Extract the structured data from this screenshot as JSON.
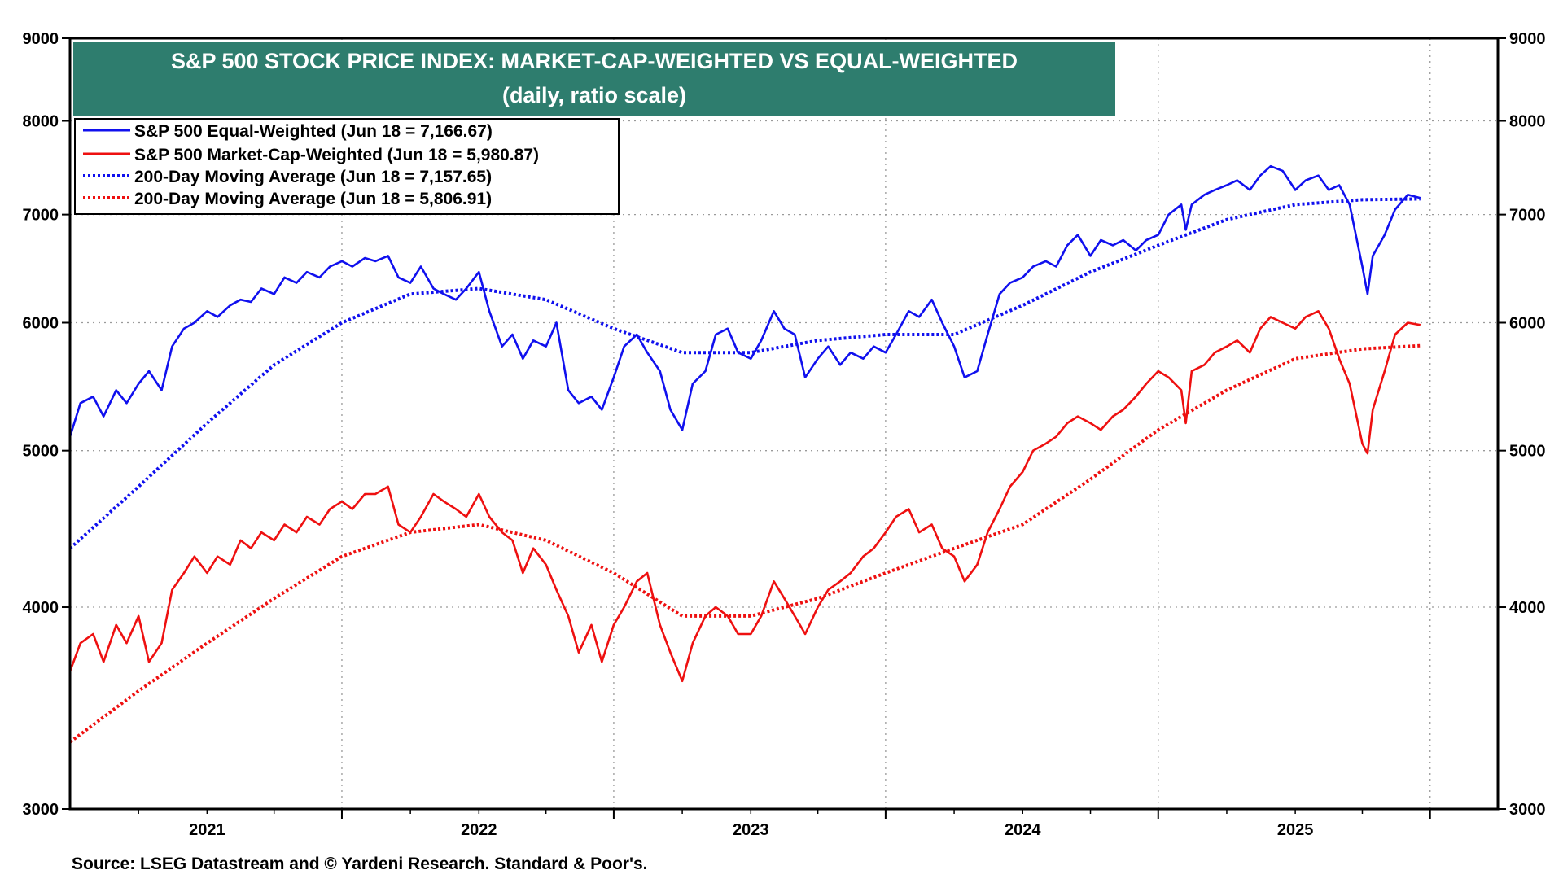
{
  "chart_data": {
    "type": "line",
    "title": "S&P 500 STOCK PRICE INDEX: MARKET-CAP-WEIGHTED VS EQUAL-WEIGHTED",
    "subtitle": "(daily, ratio scale)",
    "source": "Source: LSEG Datastream and © Yardeni Research. Standard & Poor's.",
    "y_scale": "log",
    "ylim": [
      3000,
      9000
    ],
    "y_ticks": [
      "3000",
      "4000",
      "5000",
      "6000",
      "7000",
      "8000",
      "9000"
    ],
    "x_range": [
      "2020-07-01",
      "2025-09-30"
    ],
    "x_ticks": [
      "2021",
      "2022",
      "2023",
      "2024",
      "2025"
    ],
    "grid": true,
    "legend_position": "top-left",
    "colors": {
      "equal": "#1010ee",
      "cap": "#ee1010",
      "title_bg": "#2e7d6e"
    },
    "series": [
      {
        "name": "S&P 500 Equal-Weighted (Jun 18 = 7,166.67)",
        "color": "#1010ee",
        "style": "solid",
        "x": [
          "2020-07-01",
          "2020-07-15",
          "2020-08-01",
          "2020-08-15",
          "2020-09-01",
          "2020-09-15",
          "2020-10-01",
          "2020-10-15",
          "2020-11-01",
          "2020-11-15",
          "2020-12-01",
          "2020-12-15",
          "2021-01-01",
          "2021-01-15",
          "2021-02-01",
          "2021-02-15",
          "2021-03-01",
          "2021-03-15",
          "2021-04-01",
          "2021-04-15",
          "2021-05-01",
          "2021-05-15",
          "2021-06-01",
          "2021-06-15",
          "2021-07-01",
          "2021-07-15",
          "2021-08-01",
          "2021-08-15",
          "2021-09-01",
          "2021-09-15",
          "2021-10-01",
          "2021-10-15",
          "2021-11-01",
          "2021-11-15",
          "2021-12-01",
          "2021-12-15",
          "2022-01-01",
          "2022-01-15",
          "2022-02-01",
          "2022-02-15",
          "2022-03-01",
          "2022-03-15",
          "2022-04-01",
          "2022-04-15",
          "2022-05-01",
          "2022-05-15",
          "2022-06-01",
          "2022-06-15",
          "2022-07-01",
          "2022-07-15",
          "2022-08-01",
          "2022-08-15",
          "2022-09-01",
          "2022-09-15",
          "2022-10-01",
          "2022-10-15",
          "2022-11-01",
          "2022-11-15",
          "2022-12-01",
          "2022-12-15",
          "2023-01-01",
          "2023-01-15",
          "2023-02-01",
          "2023-02-15",
          "2023-03-01",
          "2023-03-15",
          "2023-04-01",
          "2023-04-15",
          "2023-05-01",
          "2023-05-15",
          "2023-06-01",
          "2023-06-15",
          "2023-07-01",
          "2023-07-15",
          "2023-08-01",
          "2023-08-15",
          "2023-09-01",
          "2023-09-15",
          "2023-10-01",
          "2023-10-15",
          "2023-11-01",
          "2023-11-15",
          "2023-12-01",
          "2023-12-15",
          "2024-01-01",
          "2024-01-15",
          "2024-02-01",
          "2024-02-15",
          "2024-03-01",
          "2024-03-15",
          "2024-04-01",
          "2024-04-15",
          "2024-05-01",
          "2024-05-15",
          "2024-06-01",
          "2024-06-15",
          "2024-07-01",
          "2024-07-15",
          "2024-08-01",
          "2024-08-07",
          "2024-08-15",
          "2024-09-01",
          "2024-09-15",
          "2024-10-01",
          "2024-10-15",
          "2024-11-01",
          "2024-11-15",
          "2024-11-29",
          "2024-12-15",
          "2025-01-01",
          "2025-01-15",
          "2025-02-01",
          "2025-02-15",
          "2025-03-01",
          "2025-03-15",
          "2025-04-01",
          "2025-04-08",
          "2025-04-15",
          "2025-05-01",
          "2025-05-15",
          "2025-06-01",
          "2025-06-18"
        ],
        "values": [
          5100,
          5350,
          5400,
          5250,
          5450,
          5350,
          5500,
          5600,
          5450,
          5800,
          5950,
          6000,
          6100,
          6050,
          6150,
          6200,
          6180,
          6300,
          6250,
          6400,
          6350,
          6450,
          6400,
          6500,
          6550,
          6500,
          6580,
          6550,
          6600,
          6400,
          6350,
          6500,
          6300,
          6250,
          6200,
          6300,
          6450,
          6100,
          5800,
          5900,
          5700,
          5850,
          5800,
          6000,
          5450,
          5350,
          5400,
          5300,
          5550,
          5800,
          5900,
          5750,
          5600,
          5300,
          5150,
          5500,
          5600,
          5900,
          5950,
          5750,
          5700,
          5850,
          6100,
          5950,
          5900,
          5550,
          5700,
          5800,
          5650,
          5750,
          5700,
          5800,
          5750,
          5900,
          6100,
          6050,
          6200,
          6000,
          5800,
          5550,
          5600,
          5900,
          6250,
          6350,
          6400,
          6500,
          6550,
          6500,
          6700,
          6800,
          6600,
          6750,
          6700,
          6750,
          6650,
          6750,
          6800,
          7000,
          7100,
          6850,
          7100,
          7200,
          7250,
          7300,
          7350,
          7250,
          7400,
          7500,
          7450,
          7250,
          7350,
          7400,
          7250,
          7300,
          7100,
          6500,
          6250,
          6600,
          6800,
          7050,
          7200,
          7166.67
        ]
      },
      {
        "name": "S&P 500 Market-Cap-Weighted (Jun 18 = 5,980.87)",
        "color": "#ee1010",
        "style": "solid",
        "x": [
          "2020-07-01",
          "2020-07-15",
          "2020-08-01",
          "2020-08-15",
          "2020-09-01",
          "2020-09-15",
          "2020-10-01",
          "2020-10-15",
          "2020-11-01",
          "2020-11-15",
          "2020-12-01",
          "2020-12-15",
          "2021-01-01",
          "2021-01-15",
          "2021-02-01",
          "2021-02-15",
          "2021-03-01",
          "2021-03-15",
          "2021-04-01",
          "2021-04-15",
          "2021-05-01",
          "2021-05-15",
          "2021-06-01",
          "2021-06-15",
          "2021-07-01",
          "2021-07-15",
          "2021-08-01",
          "2021-08-15",
          "2021-09-01",
          "2021-09-15",
          "2021-10-01",
          "2021-10-15",
          "2021-11-01",
          "2021-11-15",
          "2021-12-01",
          "2021-12-15",
          "2022-01-01",
          "2022-01-15",
          "2022-02-01",
          "2022-02-15",
          "2022-03-01",
          "2022-03-15",
          "2022-04-01",
          "2022-04-15",
          "2022-05-01",
          "2022-05-15",
          "2022-06-01",
          "2022-06-15",
          "2022-07-01",
          "2022-07-15",
          "2022-08-01",
          "2022-08-15",
          "2022-09-01",
          "2022-09-15",
          "2022-10-01",
          "2022-10-15",
          "2022-11-01",
          "2022-11-15",
          "2022-12-01",
          "2022-12-15",
          "2023-01-01",
          "2023-01-15",
          "2023-02-01",
          "2023-02-15",
          "2023-03-01",
          "2023-03-15",
          "2023-04-01",
          "2023-04-15",
          "2023-05-01",
          "2023-05-15",
          "2023-06-01",
          "2023-06-15",
          "2023-07-01",
          "2023-07-15",
          "2023-08-01",
          "2023-08-15",
          "2023-09-01",
          "2023-09-15",
          "2023-10-01",
          "2023-10-15",
          "2023-11-01",
          "2023-11-15",
          "2023-12-01",
          "2023-12-15",
          "2024-01-01",
          "2024-01-15",
          "2024-02-01",
          "2024-02-15",
          "2024-03-01",
          "2024-03-15",
          "2024-04-01",
          "2024-04-15",
          "2024-05-01",
          "2024-05-15",
          "2024-06-01",
          "2024-06-15",
          "2024-07-01",
          "2024-07-15",
          "2024-08-01",
          "2024-08-07",
          "2024-08-15",
          "2024-09-01",
          "2024-09-15",
          "2024-10-01",
          "2024-10-15",
          "2024-11-01",
          "2024-11-15",
          "2024-11-29",
          "2024-12-15",
          "2025-01-01",
          "2025-01-15",
          "2025-02-01",
          "2025-02-15",
          "2025-03-01",
          "2025-03-15",
          "2025-04-01",
          "2025-04-08",
          "2025-04-15",
          "2025-05-01",
          "2025-05-15",
          "2025-06-01",
          "2025-06-18"
        ],
        "values": [
          3650,
          3800,
          3850,
          3700,
          3900,
          3800,
          3950,
          3700,
          3800,
          4100,
          4200,
          4300,
          4200,
          4300,
          4250,
          4400,
          4350,
          4450,
          4400,
          4500,
          4450,
          4550,
          4500,
          4600,
          4650,
          4600,
          4700,
          4700,
          4750,
          4500,
          4450,
          4550,
          4700,
          4650,
          4600,
          4550,
          4700,
          4550,
          4450,
          4400,
          4200,
          4350,
          4250,
          4100,
          3950,
          3750,
          3900,
          3700,
          3900,
          4000,
          4150,
          4200,
          3900,
          3750,
          3600,
          3800,
          3950,
          4000,
          3950,
          3850,
          3850,
          3950,
          4150,
          4050,
          3950,
          3850,
          4000,
          4100,
          4150,
          4200,
          4300,
          4350,
          4450,
          4550,
          4600,
          4450,
          4500,
          4350,
          4300,
          4150,
          4250,
          4450,
          4600,
          4750,
          4850,
          5000,
          5050,
          5100,
          5200,
          5250,
          5200,
          5150,
          5250,
          5300,
          5400,
          5500,
          5600,
          5550,
          5450,
          5200,
          5600,
          5650,
          5750,
          5800,
          5850,
          5750,
          5950,
          6050,
          6000,
          5950,
          6050,
          6100,
          5950,
          5700,
          5500,
          5050,
          4980,
          5300,
          5600,
          5900,
          6000,
          5980.87
        ]
      },
      {
        "name": "200-Day Moving Average (Jun 18 = 7,157.65)",
        "color": "#1010ee",
        "style": "dotted",
        "x": [
          "2020-07-01",
          "2020-10-01",
          "2021-01-01",
          "2021-04-01",
          "2021-07-01",
          "2021-10-01",
          "2022-01-01",
          "2022-04-01",
          "2022-07-01",
          "2022-10-01",
          "2023-01-01",
          "2023-04-01",
          "2023-07-01",
          "2023-10-01",
          "2024-01-01",
          "2024-04-01",
          "2024-07-01",
          "2024-10-01",
          "2025-01-01",
          "2025-04-01",
          "2025-06-18"
        ],
        "values": [
          4350,
          4750,
          5200,
          5650,
          6000,
          6250,
          6300,
          6200,
          5950,
          5750,
          5750,
          5850,
          5900,
          5900,
          6150,
          6450,
          6700,
          6950,
          7100,
          7150,
          7157.65
        ]
      },
      {
        "name": "200-Day Moving Average (Jun 18 = 5,806.91)",
        "color": "#ee1010",
        "style": "dotted",
        "x": [
          "2020-07-01",
          "2020-10-01",
          "2021-01-01",
          "2021-04-01",
          "2021-07-01",
          "2021-10-01",
          "2022-01-01",
          "2022-04-01",
          "2022-07-01",
          "2022-10-01",
          "2023-01-01",
          "2023-04-01",
          "2023-07-01",
          "2023-10-01",
          "2024-01-01",
          "2024-04-01",
          "2024-07-01",
          "2024-10-01",
          "2025-01-01",
          "2025-04-01",
          "2025-06-18"
        ],
        "values": [
          3300,
          3550,
          3800,
          4050,
          4300,
          4450,
          4500,
          4400,
          4200,
          3950,
          3950,
          4050,
          4200,
          4350,
          4500,
          4800,
          5150,
          5450,
          5700,
          5780,
          5806.91
        ]
      }
    ]
  }
}
